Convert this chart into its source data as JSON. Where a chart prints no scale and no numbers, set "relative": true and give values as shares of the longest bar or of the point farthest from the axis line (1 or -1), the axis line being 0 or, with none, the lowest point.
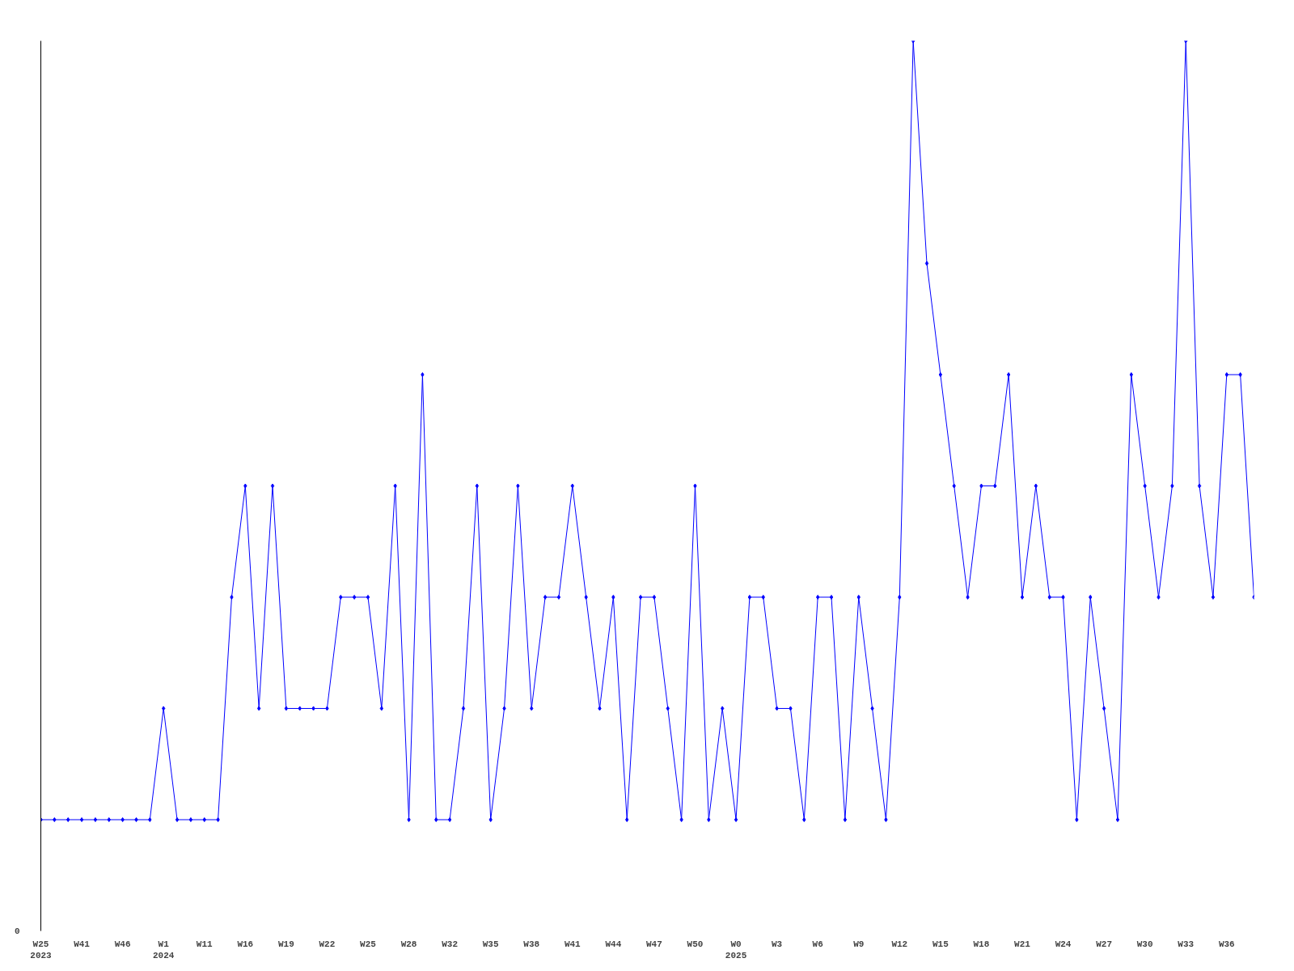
{
  "chart_data": {
    "type": "line",
    "relative": true,
    "marker": "diamond",
    "line_style": "solid",
    "categories": [
      "W25\n2023",
      null,
      null,
      "W41",
      null,
      null,
      "W46",
      null,
      null,
      "W1\n2024",
      null,
      null,
      "W11",
      null,
      null,
      "W16",
      null,
      null,
      "W19",
      null,
      null,
      "W22",
      null,
      null,
      "W25",
      null,
      null,
      "W28",
      null,
      null,
      "W32",
      null,
      null,
      "W35",
      null,
      null,
      "W38",
      null,
      null,
      "W41",
      null,
      null,
      "W44",
      null,
      null,
      "W47",
      null,
      null,
      "W50",
      null,
      null,
      "W0\n2025",
      null,
      null,
      "W3",
      null,
      null,
      "W6",
      null,
      null,
      "W9",
      null,
      null,
      "W12",
      null,
      null,
      "W15",
      null,
      null,
      "W18",
      null,
      null,
      "W21",
      null,
      null,
      "W24",
      null,
      null,
      "W27",
      null,
      null,
      "W30",
      null,
      null,
      "W33",
      null,
      null,
      "W36",
      null,
      null
    ],
    "series": [
      {
        "color": "#0000ff",
        "values": [
          0.125,
          0.125,
          0.125,
          0.125,
          0.125,
          0.125,
          0.125,
          0.125,
          0.125,
          0.25,
          0.125,
          0.125,
          0.125,
          0.125,
          0.375,
          0.5,
          0.25,
          0.5,
          0.25,
          0.25,
          0.25,
          0.25,
          0.375,
          0.375,
          0.375,
          0.25,
          0.5,
          0.125,
          0.625,
          0.125,
          0.125,
          0.25,
          0.5,
          0.125,
          0.25,
          0.5,
          0.25,
          0.375,
          0.375,
          0.5,
          0.375,
          0.25,
          0.375,
          0.125,
          0.375,
          0.375,
          0.25,
          0.125,
          0.5,
          0.125,
          0.25,
          0.125,
          0.375,
          0.375,
          0.25,
          0.25,
          0.125,
          0.375,
          0.375,
          0.125,
          0.375,
          0.25,
          0.125,
          0.375,
          1,
          0.75,
          0.625,
          0.5,
          0.375,
          0.5,
          0.5,
          0.625,
          0.375,
          0.5,
          0.375,
          0.375,
          0.125,
          0.375,
          0.25,
          0.125,
          0.625,
          0.5,
          0.375,
          0.5,
          1,
          0.5,
          0.375,
          0.625,
          0.625,
          0.375
        ]
      }
    ],
    "annotations": [
      "0"
    ]
  }
}
